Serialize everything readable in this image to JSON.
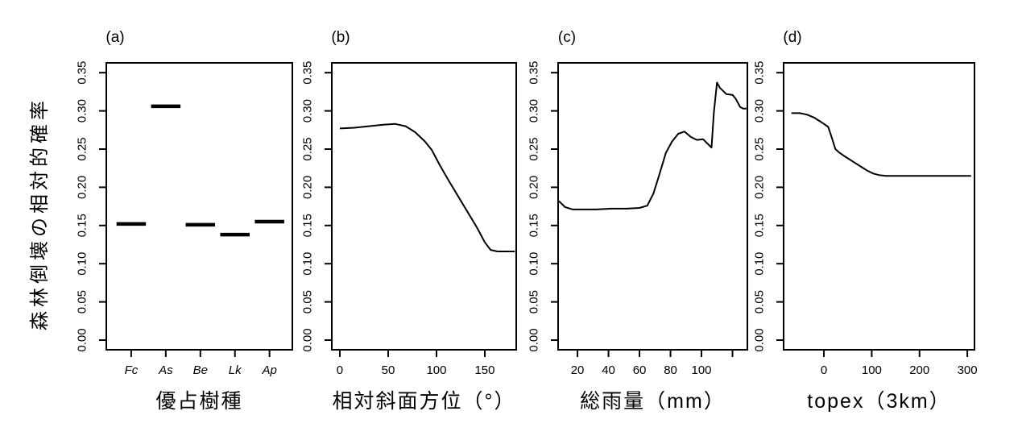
{
  "figure": {
    "background_color": "#ffffff",
    "axis_color": "#000000",
    "line_color": "#000000",
    "text_color": "#000000",
    "y_axis_label": "森林倒壊の相対的確率",
    "y_ticks": {
      "values": [
        0.0,
        0.05,
        0.1,
        0.15,
        0.2,
        0.25,
        0.3,
        0.35
      ],
      "labels": [
        "0.00",
        "0.05",
        "0.10",
        "0.15",
        "0.20",
        "0.25",
        "0.30",
        "0.35"
      ]
    },
    "ylim": [
      0,
      0.363
    ]
  },
  "chart_data": [
    {
      "type": "segments",
      "panel_label": "(a)",
      "xlabel": "優占樹種",
      "categories": [
        "Fc",
        "As",
        "Be",
        "Lk",
        "Ap"
      ],
      "categories_italic": true,
      "x_positions": [
        1,
        2,
        3,
        4,
        5
      ],
      "values": [
        0.152,
        0.306,
        0.151,
        0.138,
        0.155
      ],
      "segment_halfwidth": 0.425,
      "xlim": [
        0.28,
        5.66
      ],
      "ylim": [
        0,
        0.35
      ],
      "legend": "none",
      "grid": false
    },
    {
      "type": "line",
      "panel_label": "(b)",
      "xlabel": "相対斜面方位（°）",
      "x_ticks": {
        "values": [
          0,
          50,
          100,
          150
        ],
        "labels": [
          "0",
          "50",
          "100",
          "150"
        ]
      },
      "xlim": [
        -8.3,
        182.5
      ],
      "ylim": [
        0,
        0.35
      ],
      "x": [
        0,
        15,
        30,
        45,
        57,
        68,
        78,
        88,
        95,
        103,
        112,
        122,
        132,
        142,
        150,
        156,
        163,
        172,
        181
      ],
      "y": [
        0.277,
        0.278,
        0.28,
        0.282,
        0.283,
        0.28,
        0.272,
        0.26,
        0.249,
        0.23,
        0.21,
        0.189,
        0.168,
        0.147,
        0.128,
        0.118,
        0.116,
        0.116,
        0.116
      ],
      "legend": "none",
      "grid": false
    },
    {
      "type": "line",
      "panel_label": "(c)",
      "xlabel": "総雨量（mm）",
      "x_ticks": {
        "values": [
          20,
          40,
          60,
          80,
          100,
          120
        ],
        "labels": [
          "20",
          "40",
          "60",
          "80",
          "100",
          ""
        ]
      },
      "xlim": [
        7.5,
        129.6
      ],
      "ylim": [
        0,
        0.35
      ],
      "x": [
        8,
        12,
        17,
        24,
        32,
        42,
        52,
        60,
        65,
        69,
        73,
        77,
        81,
        85,
        89,
        93,
        97,
        101,
        104,
        106.5,
        108,
        110,
        112,
        116,
        120,
        122,
        125,
        127,
        129
      ],
      "y": [
        0.182,
        0.174,
        0.171,
        0.171,
        0.171,
        0.172,
        0.172,
        0.173,
        0.176,
        0.192,
        0.218,
        0.245,
        0.26,
        0.27,
        0.273,
        0.266,
        0.262,
        0.263,
        0.257,
        0.252,
        0.298,
        0.337,
        0.33,
        0.322,
        0.321,
        0.316,
        0.305,
        0.303,
        0.303
      ],
      "legend": "none",
      "grid": false
    },
    {
      "type": "line",
      "panel_label": "(d)",
      "xlabel": "topex（3km）",
      "x_ticks": {
        "values": [
          0,
          100,
          200,
          300
        ],
        "labels": [
          "0",
          "100",
          "200",
          "300"
        ]
      },
      "xlim": [
        -84.3,
        315
      ],
      "ylim": [
        0,
        0.35
      ],
      "x": [
        -68,
        -50,
        -35,
        -20,
        -10,
        0,
        9,
        16,
        24,
        33,
        45,
        60,
        75,
        90,
        103,
        115,
        130,
        160,
        200,
        250,
        308
      ],
      "y": [
        0.297,
        0.297,
        0.295,
        0.291,
        0.287,
        0.283,
        0.279,
        0.266,
        0.25,
        0.245,
        0.24,
        0.234,
        0.228,
        0.222,
        0.218,
        0.216,
        0.215,
        0.215,
        0.215,
        0.215,
        0.215
      ],
      "legend": "none",
      "grid": false
    }
  ]
}
